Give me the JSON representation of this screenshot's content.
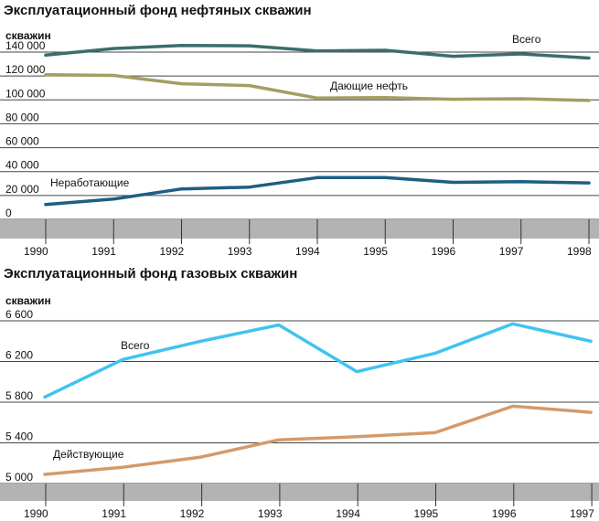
{
  "chart_data": [
    {
      "type": "line",
      "title": "Эксплуатационный фонд нефтяных скважин",
      "ylabel": "скважин",
      "x": [
        "1990",
        "1991",
        "1992",
        "1993",
        "1994",
        "1995",
        "1996",
        "1997",
        "1998"
      ],
      "yticks": [
        "0",
        "20 000",
        "40 000",
        "60 000",
        "80 000",
        "100 000",
        "120 000",
        "140 000"
      ],
      "ylim": [
        0,
        140000
      ],
      "grid": true,
      "series": [
        {
          "name": "Всего",
          "color": "#3b6e6a",
          "values": [
            137500,
            143000,
            145500,
            145300,
            141000,
            141500,
            136500,
            138500,
            135000
          ]
        },
        {
          "name": "Дающие нефть",
          "color": "#a39e62",
          "values": [
            121000,
            120500,
            113500,
            112000,
            101500,
            102000,
            100500,
            101000,
            99500
          ]
        },
        {
          "name": "Неработающие",
          "color": "#1d5e84",
          "values": [
            12500,
            17000,
            25500,
            27000,
            35000,
            35000,
            31000,
            31500,
            30500
          ]
        }
      ]
    },
    {
      "type": "line",
      "title": "Эксплуатационный фонд газовых скважин",
      "ylabel": "скважин",
      "x": [
        "1990",
        "1991",
        "1992",
        "1993",
        "1994",
        "1995",
        "1996",
        "1997"
      ],
      "yticks": [
        "5 000",
        "5 400",
        "5 800",
        "6 200",
        "6 600"
      ],
      "ylim": [
        5000,
        6600
      ],
      "grid": true,
      "series": [
        {
          "name": "Всего",
          "color": "#40c3f0",
          "values": [
            5850,
            6220,
            6400,
            6560,
            6100,
            6280,
            6570,
            6400
          ]
        },
        {
          "name": "Действующие",
          "color": "#d49a6a",
          "values": [
            5090,
            5160,
            5260,
            5430,
            5460,
            5500,
            5760,
            5700
          ]
        }
      ]
    }
  ]
}
